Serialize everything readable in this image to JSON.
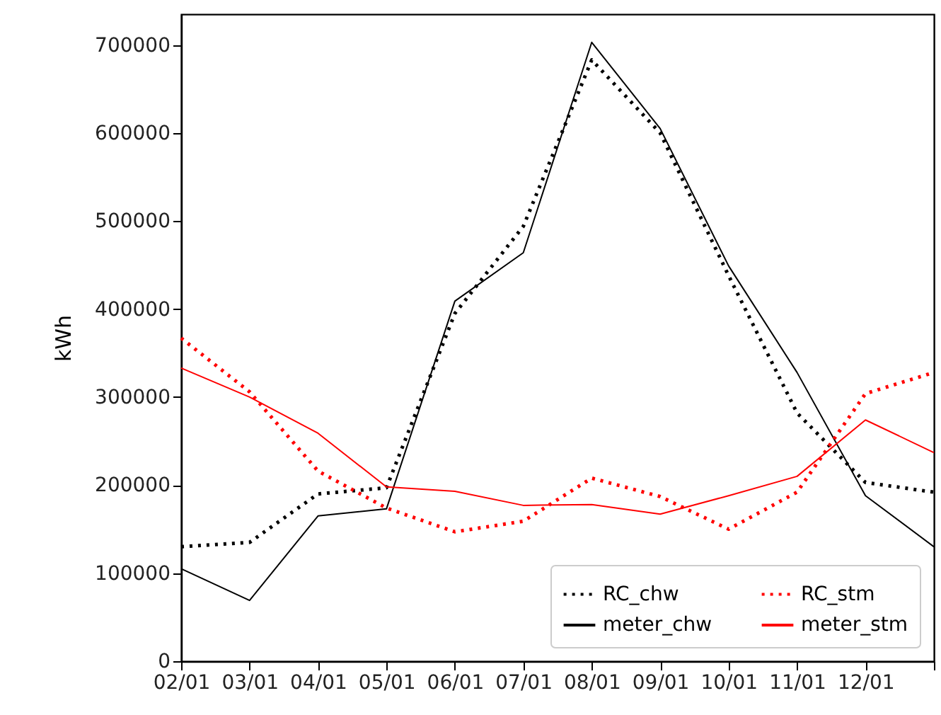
{
  "chart_data": {
    "type": "line",
    "ylabel": "kWh",
    "categories": [
      "02/01",
      "03/01",
      "04/01",
      "05/01",
      "06/01",
      "07/01",
      "08/01",
      "09/01",
      "10/01",
      "11/01",
      "12/01",
      null
    ],
    "series": [
      {
        "name": "RC_chw",
        "color": "#000000",
        "line_style": "dotted",
        "values": [
          130000,
          135000,
          190000,
          197000,
          395000,
          494000,
          683000,
          600000,
          438000,
          282000,
          203000,
          192000
        ]
      },
      {
        "name": "meter_chw",
        "color": "#000000",
        "line_style": "solid",
        "values": [
          105000,
          69000,
          165000,
          173000,
          409000,
          464000,
          703000,
          605000,
          449000,
          328000,
          188000,
          130000
        ]
      },
      {
        "name": "RC_stm",
        "color": "#ff0000",
        "line_style": "dotted",
        "values": [
          367000,
          306000,
          216000,
          174000,
          147000,
          159000,
          208000,
          187000,
          150000,
          192000,
          304000,
          328000
        ]
      },
      {
        "name": "meter_stm",
        "color": "#ff0000",
        "line_style": "solid",
        "values": [
          333000,
          300000,
          259000,
          198000,
          193000,
          177000,
          178000,
          167000,
          188000,
          210000,
          274000,
          237000
        ]
      }
    ],
    "ylim": [
      0,
      735000
    ],
    "yticks": [
      0,
      100000,
      200000,
      300000,
      400000,
      500000,
      600000,
      700000
    ],
    "grid": false,
    "legend": "bottom right"
  }
}
